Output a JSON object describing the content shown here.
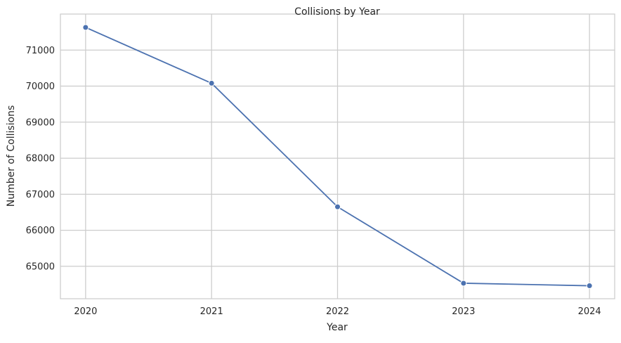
{
  "chart_data": {
    "type": "line",
    "title": "Collisions by Year",
    "xlabel": "Year",
    "ylabel": "Number of Collisions",
    "x": [
      2020,
      2021,
      2022,
      2023,
      2024
    ],
    "series": [
      {
        "values": [
          71630,
          70080,
          66650,
          64530,
          64460
        ],
        "color": "#4c72b0",
        "marker": "circle"
      }
    ],
    "xticks": [
      "2020",
      "2021",
      "2022",
      "2023",
      "2024"
    ],
    "yticks": [
      "65000",
      "66000",
      "67000",
      "68000",
      "69000",
      "70000",
      "71000"
    ],
    "xlim": [
      2019.8,
      2024.2
    ],
    "ylim": [
      64100,
      72000
    ],
    "grid": true,
    "grid_color": "#cccccc",
    "frame_color": "#cccccc",
    "background": "#ffffff"
  }
}
